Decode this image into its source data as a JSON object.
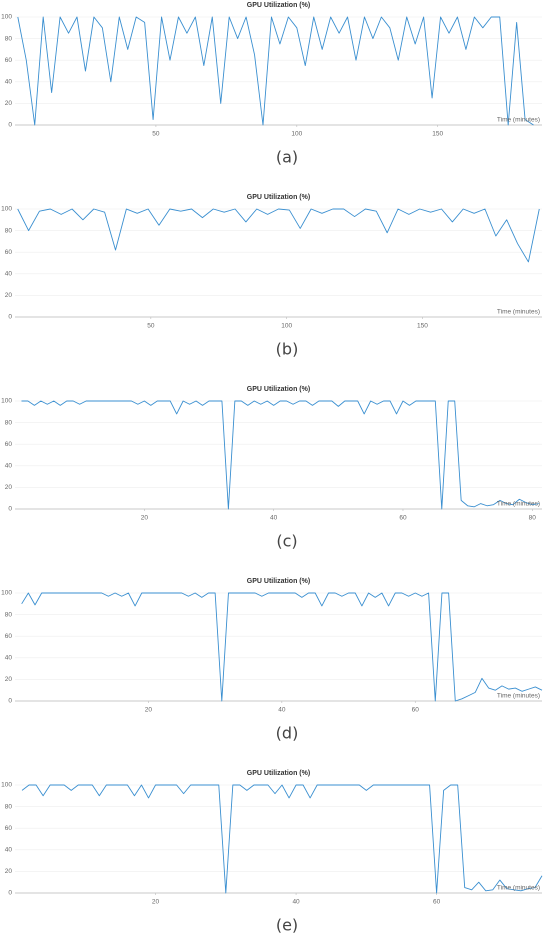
{
  "chart_data": [
    {
      "type": "line",
      "title": "GPU Utilization (%)",
      "x_label": "Time (minutes)",
      "caption": "(a)",
      "color": "#3a8fd0",
      "grid": true,
      "xlim": [
        0,
        187
      ],
      "xticks": [
        50,
        100,
        150
      ],
      "ylim": [
        0,
        100
      ],
      "yticks": [
        0,
        20,
        40,
        60,
        80,
        100
      ],
      "x": [
        1,
        4,
        7,
        10,
        13,
        16,
        19,
        22,
        25,
        28,
        31,
        34,
        37,
        40,
        43,
        46,
        49,
        52,
        55,
        58,
        61,
        64,
        67,
        70,
        73,
        76,
        79,
        82,
        85,
        88,
        91,
        94,
        97,
        100,
        103,
        106,
        109,
        112,
        115,
        118,
        121,
        124,
        127,
        130,
        133,
        136,
        139,
        142,
        145,
        148,
        151,
        154,
        157,
        160,
        163,
        166,
        169,
        172,
        175,
        178,
        181,
        184
      ],
      "values": [
        100,
        60,
        0,
        100,
        30,
        100,
        85,
        100,
        50,
        100,
        90,
        40,
        100,
        70,
        100,
        95,
        5,
        100,
        60,
        100,
        85,
        100,
        55,
        100,
        20,
        100,
        80,
        100,
        65,
        0,
        100,
        75,
        100,
        90,
        55,
        100,
        70,
        100,
        85,
        100,
        60,
        100,
        80,
        100,
        90,
        60,
        100,
        75,
        100,
        25,
        100,
        85,
        100,
        70,
        100,
        90,
        100,
        100,
        0,
        95,
        5,
        0
      ]
    },
    {
      "type": "line",
      "title": "GPU Utilization (%)",
      "x_label": "Time (minutes)",
      "caption": "(b)",
      "color": "#3a8fd0",
      "grid": true,
      "xlim": [
        0,
        194
      ],
      "xticks": [
        50,
        100,
        150
      ],
      "ylim": [
        0,
        100
      ],
      "yticks": [
        0,
        20,
        40,
        60,
        80,
        100
      ],
      "x": [
        1,
        5,
        9,
        13,
        17,
        21,
        25,
        29,
        33,
        37,
        41,
        45,
        49,
        53,
        57,
        61,
        65,
        69,
        73,
        77,
        81,
        85,
        89,
        93,
        97,
        101,
        105,
        109,
        113,
        117,
        121,
        125,
        129,
        133,
        137,
        141,
        145,
        149,
        153,
        157,
        161,
        165,
        169,
        173,
        177,
        181,
        185,
        189,
        193
      ],
      "values": [
        100,
        80,
        98,
        100,
        95,
        100,
        90,
        100,
        97,
        62,
        100,
        96,
        100,
        85,
        100,
        98,
        100,
        92,
        100,
        97,
        100,
        88,
        100,
        95,
        100,
        99,
        82,
        100,
        96,
        100,
        100,
        93,
        100,
        98,
        78,
        100,
        95,
        100,
        97,
        100,
        88,
        100,
        96,
        100,
        75,
        90,
        68,
        51,
        100
      ]
    },
    {
      "type": "line",
      "title": "GPU Utilization (%)",
      "x_label": "Time (minutes)",
      "caption": "(c)",
      "color": "#3a8fd0",
      "grid": true,
      "xlim": [
        0,
        81.5
      ],
      "xticks": [
        20,
        40,
        60,
        80
      ],
      "ylim": [
        0,
        100
      ],
      "yticks": [
        0,
        20,
        40,
        60,
        80,
        100
      ],
      "x": [
        1,
        2,
        3,
        4,
        5,
        6,
        7,
        8,
        9,
        10,
        11,
        12,
        13,
        14,
        15,
        16,
        17,
        18,
        19,
        20,
        21,
        22,
        23,
        24,
        25,
        26,
        27,
        28,
        29,
        30,
        31,
        32,
        33,
        34,
        35,
        36,
        37,
        38,
        39,
        40,
        41,
        42,
        43,
        44,
        45,
        46,
        47,
        48,
        49,
        50,
        51,
        52,
        53,
        54,
        55,
        56,
        57,
        58,
        59,
        60,
        61,
        62,
        63,
        64,
        65,
        66,
        67,
        68,
        69,
        70,
        71,
        72,
        73,
        74,
        75,
        76,
        77,
        78,
        79,
        80,
        81
      ],
      "values": [
        100,
        100,
        96,
        100,
        97,
        100,
        96,
        100,
        100,
        97,
        100,
        100,
        100,
        100,
        100,
        100,
        100,
        100,
        97,
        100,
        96,
        100,
        100,
        100,
        88,
        100,
        97,
        100,
        96,
        100,
        100,
        100,
        0,
        100,
        100,
        96,
        100,
        97,
        100,
        96,
        100,
        100,
        97,
        100,
        100,
        96,
        100,
        100,
        100,
        95,
        100,
        100,
        100,
        88,
        100,
        97,
        100,
        100,
        88,
        100,
        96,
        100,
        100,
        100,
        100,
        0,
        100,
        100,
        8,
        3,
        2,
        5,
        3,
        4,
        8,
        5,
        4,
        9,
        6,
        4,
        5
      ]
    },
    {
      "type": "line",
      "title": "GPU Utilization (%)",
      "x_label": "Time (minutes)",
      "caption": "(d)",
      "color": "#3a8fd0",
      "grid": true,
      "xlim": [
        0,
        79
      ],
      "xticks": [
        20,
        40,
        60
      ],
      "ylim": [
        0,
        100
      ],
      "yticks": [
        0,
        20,
        40,
        60,
        80,
        100
      ],
      "x": [
        1,
        2,
        3,
        4,
        5,
        6,
        7,
        8,
        9,
        10,
        11,
        12,
        13,
        14,
        15,
        16,
        17,
        18,
        19,
        20,
        21,
        22,
        23,
        24,
        25,
        26,
        27,
        28,
        29,
        30,
        31,
        32,
        33,
        34,
        35,
        36,
        37,
        38,
        39,
        40,
        41,
        42,
        43,
        44,
        45,
        46,
        47,
        48,
        49,
        50,
        51,
        52,
        53,
        54,
        55,
        56,
        57,
        58,
        59,
        60,
        61,
        62,
        63,
        64,
        65,
        66,
        67,
        68,
        69,
        70,
        71,
        72,
        73,
        74,
        75,
        76,
        77,
        78,
        79
      ],
      "values": [
        90,
        100,
        89,
        100,
        100,
        100,
        100,
        100,
        100,
        100,
        100,
        100,
        100,
        97,
        100,
        97,
        100,
        88,
        100,
        100,
        100,
        100,
        100,
        100,
        100,
        97,
        100,
        96,
        100,
        100,
        0,
        100,
        100,
        100,
        100,
        100,
        97,
        100,
        100,
        100,
        100,
        100,
        96,
        100,
        100,
        88,
        100,
        100,
        97,
        100,
        100,
        88,
        100,
        96,
        100,
        88,
        100,
        100,
        97,
        100,
        97,
        100,
        0,
        100,
        100,
        0,
        2,
        5,
        8,
        21,
        12,
        10,
        14,
        11,
        12,
        9,
        11,
        13,
        10
      ]
    },
    {
      "type": "line",
      "title": "GPU Utilization (%)",
      "x_label": "Time (minutes)",
      "caption": "(e)",
      "color": "#3a8fd0",
      "grid": true,
      "xlim": [
        0,
        75
      ],
      "xticks": [
        20,
        40,
        60
      ],
      "ylim": [
        0,
        100
      ],
      "yticks": [
        0,
        20,
        40,
        60,
        80,
        100
      ],
      "x": [
        1,
        2,
        3,
        4,
        5,
        6,
        7,
        8,
        9,
        10,
        11,
        12,
        13,
        14,
        15,
        16,
        17,
        18,
        19,
        20,
        21,
        22,
        23,
        24,
        25,
        26,
        27,
        28,
        29,
        30,
        31,
        32,
        33,
        34,
        35,
        36,
        37,
        38,
        39,
        40,
        41,
        42,
        43,
        44,
        45,
        46,
        47,
        48,
        49,
        50,
        51,
        52,
        53,
        54,
        55,
        56,
        57,
        58,
        59,
        60,
        61,
        62,
        63,
        64,
        65,
        66,
        67,
        68,
        69,
        70,
        71,
        72,
        73,
        74,
        75
      ],
      "values": [
        95,
        100,
        100,
        90,
        100,
        100,
        100,
        95,
        100,
        100,
        100,
        90,
        100,
        100,
        100,
        100,
        90,
        100,
        88,
        100,
        100,
        100,
        100,
        92,
        100,
        100,
        100,
        100,
        100,
        0,
        100,
        100,
        95,
        100,
        100,
        100,
        92,
        100,
        88,
        100,
        100,
        88,
        100,
        100,
        100,
        100,
        100,
        100,
        100,
        95,
        100,
        100,
        100,
        100,
        100,
        100,
        100,
        100,
        100,
        0,
        95,
        100,
        100,
        5,
        3,
        10,
        2,
        3,
        12,
        4,
        3,
        2,
        4,
        5,
        16
      ]
    }
  ]
}
